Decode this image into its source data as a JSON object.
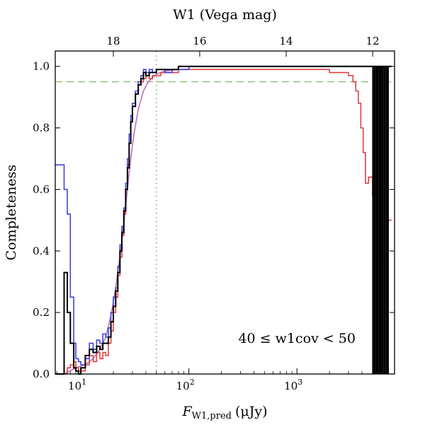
{
  "chart_data": {
    "type": "line",
    "x_scale": "log",
    "xlim": [
      5.8,
      8000
    ],
    "ylim": [
      0.0,
      1.05
    ],
    "grid": false,
    "xlabel_main": "F",
    "xlabel_sub": "W1,pred",
    "xlabel_unit": "(μJy)",
    "ylabel": "Completeness",
    "top_xlabel": "W1 (Vega mag)",
    "annotation": "40 ≤ w1cov < 50",
    "x_ticks": [
      {
        "value": 10,
        "base": "10",
        "exp": "1"
      },
      {
        "value": 100,
        "base": "10",
        "exp": "2"
      },
      {
        "value": 1000,
        "base": "10",
        "exp": "3"
      }
    ],
    "y_ticks": [
      {
        "value": 0.0,
        "label": "0.0"
      },
      {
        "value": 0.2,
        "label": "0.2"
      },
      {
        "value": 0.4,
        "label": "0.4"
      },
      {
        "value": 0.6,
        "label": "0.6"
      },
      {
        "value": 0.8,
        "label": "0.8"
      },
      {
        "value": 1.0,
        "label": "1.0"
      }
    ],
    "top_ticks": [
      {
        "flux": 20.0,
        "label": "18"
      },
      {
        "flux": 126.0,
        "label": "16"
      },
      {
        "flux": 795.0,
        "label": "14"
      },
      {
        "flux": 5020.0,
        "label": "12"
      }
    ],
    "reference_lines": [
      {
        "orientation": "horizontal",
        "value": 0.95,
        "style": "dashed",
        "color": "#8fbc6f"
      },
      {
        "orientation": "vertical",
        "value": 50,
        "style": "dotted",
        "color": "#9bb08b"
      }
    ],
    "series": [
      {
        "color": "#4040e6",
        "style": "step",
        "x": [
          5.8,
          6.0,
          7.0,
          7.5,
          8.0,
          8.6,
          9.0,
          9.5,
          10.0,
          11.0,
          12.0,
          13.0,
          14.0,
          15.0,
          16.0,
          17.0,
          18.0,
          19.0,
          20.0,
          21.0,
          22.0,
          23.0,
          24.0,
          25.0,
          26.0,
          27.0,
          28.0,
          29.0,
          30.0,
          32.0,
          34.0,
          36.0,
          38.0,
          40.0,
          43.0,
          46.0,
          50.0,
          55.0,
          60.0,
          70.0,
          80.0,
          100.0,
          150.0,
          200.0,
          300.0,
          500.0,
          1000.0,
          2000.0,
          4000.0,
          7500.0
        ],
        "y": [
          0.68,
          0.68,
          0.6,
          0.52,
          0.25,
          0.1,
          0.05,
          0.04,
          0.03,
          0.05,
          0.1,
          0.08,
          0.11,
          0.1,
          0.13,
          0.12,
          0.15,
          0.2,
          0.25,
          0.28,
          0.35,
          0.42,
          0.48,
          0.54,
          0.62,
          0.7,
          0.78,
          0.84,
          0.88,
          0.92,
          0.95,
          0.97,
          0.99,
          0.98,
          0.99,
          0.98,
          0.99,
          0.99,
          0.98,
          0.99,
          0.99,
          1.0,
          1.0,
          1.0,
          1.0,
          1.0,
          1.0,
          1.0,
          1.0,
          1.0
        ]
      },
      {
        "color": "#e04040",
        "style": "step",
        "x": [
          5.8,
          7.0,
          7.5,
          8.0,
          8.6,
          9.0,
          9.5,
          10.0,
          11.0,
          12.0,
          13.0,
          14.0,
          15.0,
          16.0,
          17.0,
          18.0,
          19.0,
          20.0,
          21.0,
          22.0,
          23.0,
          24.0,
          25.0,
          26.0,
          27.0,
          28.0,
          29.0,
          30.0,
          32.0,
          34.0,
          36.0,
          38.0,
          40.0,
          43.0,
          46.0,
          50.0,
          55.0,
          60.0,
          70.0,
          80.0,
          100.0,
          150.0,
          200.0,
          300.0,
          500.0,
          1000.0,
          1500.0,
          2000.0,
          2500.0,
          3000.0,
          3300.0,
          3500.0,
          3700.0,
          3900.0,
          4100.0,
          4300.0,
          4600.0,
          5000.0,
          5500.0,
          6000.0,
          6500.0,
          7000.0,
          7500.0
        ],
        "y": [
          0.0,
          0.0,
          0.02,
          0.03,
          0.04,
          0.02,
          0.01,
          0.01,
          0.03,
          0.06,
          0.04,
          0.07,
          0.05,
          0.07,
          0.06,
          0.1,
          0.14,
          0.2,
          0.25,
          0.32,
          0.38,
          0.45,
          0.52,
          0.6,
          0.68,
          0.75,
          0.82,
          0.87,
          0.91,
          0.94,
          0.95,
          0.96,
          0.97,
          0.96,
          0.97,
          0.97,
          0.98,
          0.98,
          0.98,
          0.99,
          0.99,
          0.99,
          0.99,
          0.99,
          0.99,
          0.99,
          0.99,
          0.98,
          0.98,
          0.97,
          0.95,
          0.92,
          0.88,
          0.8,
          0.72,
          0.62,
          0.64,
          0.58,
          0.5,
          0.38,
          0.37,
          0.5,
          0.5
        ]
      },
      {
        "color": "#000000",
        "style": "step",
        "x": [
          5.8,
          7.0,
          7.5,
          8.0,
          8.6,
          9.0,
          9.5,
          10.0,
          11.0,
          12.0,
          13.0,
          14.0,
          15.0,
          16.0,
          17.0,
          18.0,
          19.0,
          20.0,
          21.0,
          22.0,
          23.0,
          24.0,
          25.0,
          26.0,
          27.0,
          28.0,
          29.0,
          30.0,
          32.0,
          34.0,
          36.0,
          38.0,
          40.0,
          43.0,
          46.0,
          50.0,
          55.0,
          60.0,
          70.0,
          80.0,
          100.0,
          150.0,
          200.0,
          300.0,
          500.0,
          1000.0,
          2000.0,
          4000.0,
          5000.0,
          7500.0
        ],
        "y": [
          0.0,
          0.33,
          0.2,
          0.1,
          0.02,
          0.01,
          0.0,
          0.02,
          0.06,
          0.08,
          0.07,
          0.09,
          0.08,
          0.1,
          0.1,
          0.12,
          0.17,
          0.22,
          0.27,
          0.33,
          0.4,
          0.46,
          0.53,
          0.6,
          0.67,
          0.75,
          0.82,
          0.87,
          0.91,
          0.94,
          0.96,
          0.98,
          0.97,
          0.98,
          0.98,
          0.99,
          0.99,
          0.99,
          0.99,
          1.0,
          1.0,
          1.0,
          1.0,
          1.0,
          1.0,
          1.0,
          1.0,
          1.0,
          1.0,
          1.0
        ]
      },
      {
        "color": "#c06cc0",
        "style": "smooth",
        "x": [
          7.0,
          9.0,
          11.0,
          13.0,
          15.0,
          17.0,
          19.0,
          21.0,
          23.0,
          25.0,
          27.0,
          29.0,
          31.0,
          34.0,
          38.0,
          42.0,
          50.0,
          60.0,
          80.0
        ],
        "y": [
          0.0,
          0.02,
          0.03,
          0.05,
          0.08,
          0.12,
          0.19,
          0.28,
          0.38,
          0.49,
          0.6,
          0.7,
          0.78,
          0.86,
          0.92,
          0.95,
          0.975,
          0.985,
          0.99
        ]
      }
    ],
    "black_spikes": [
      5060,
      5240,
      5430,
      5620,
      5820,
      6030,
      6250,
      6480,
      6720,
      6960
    ]
  }
}
